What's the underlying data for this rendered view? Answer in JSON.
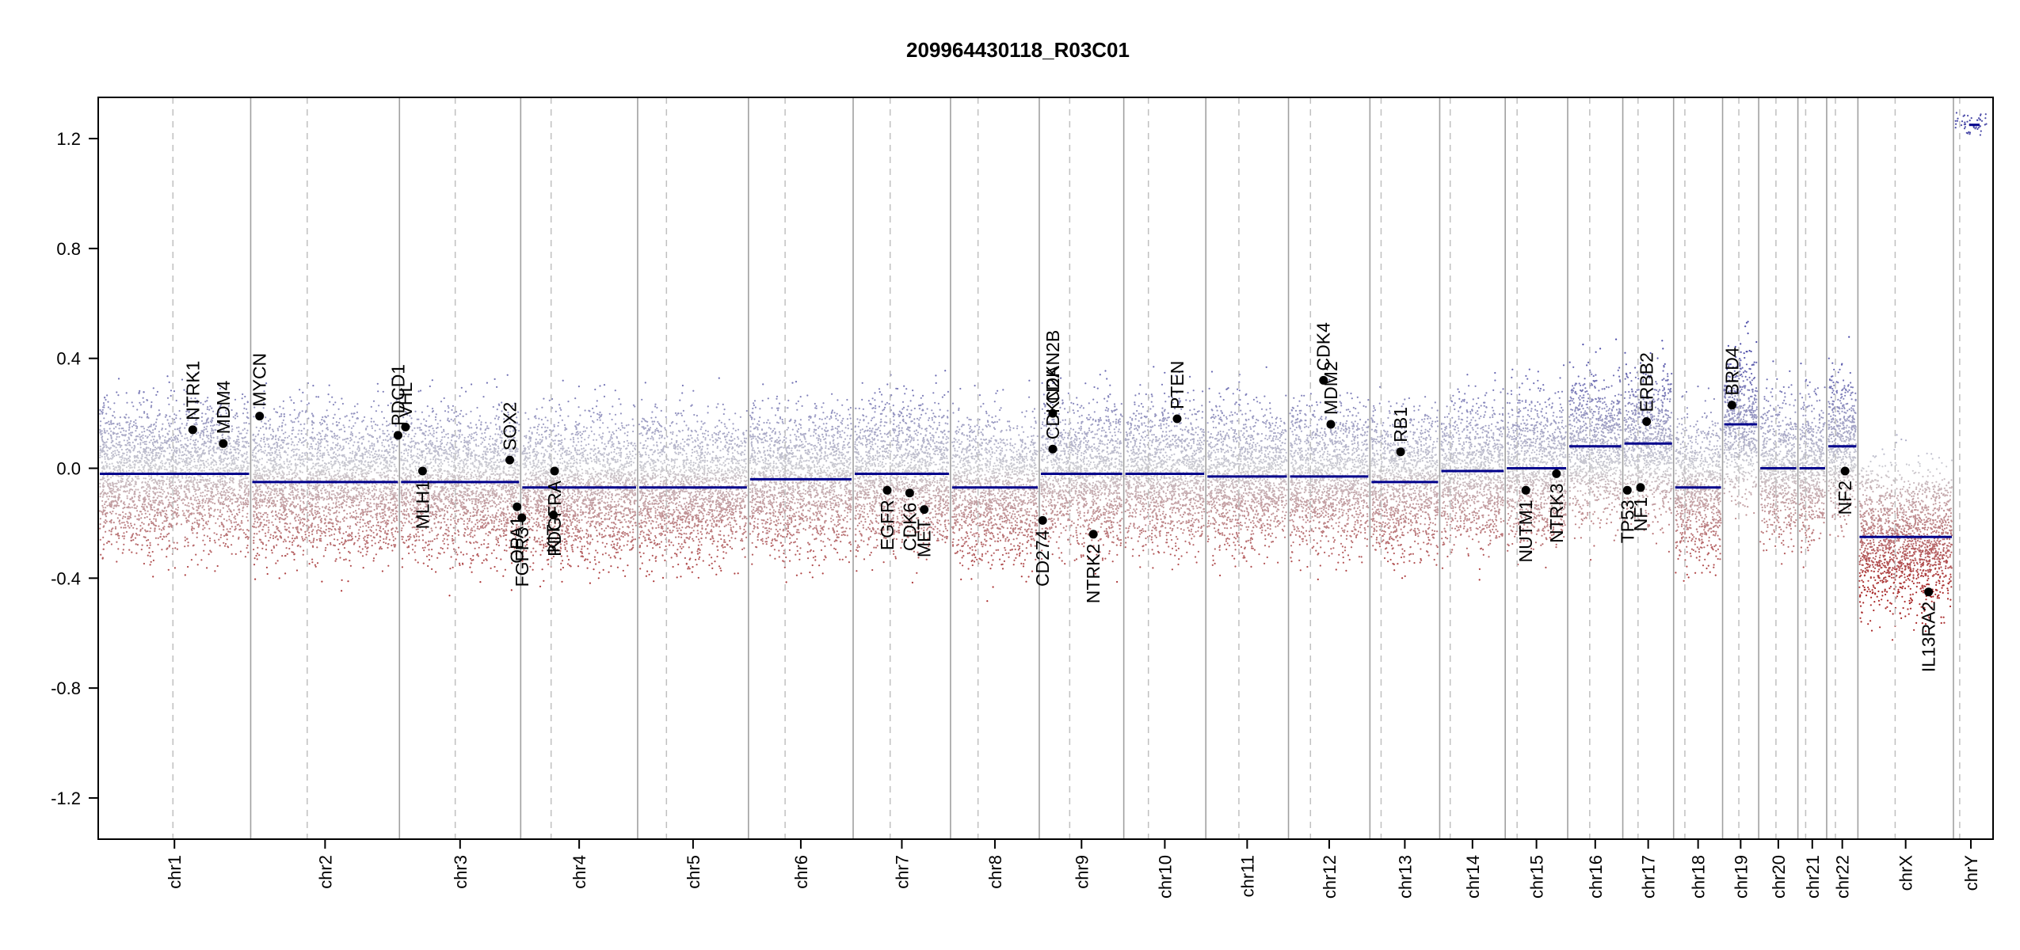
{
  "chart_data": {
    "type": "scatter",
    "title": "209964430118_R03C01",
    "xlabel": "",
    "ylabel": "",
    "ylim": [
      -1.35,
      1.35
    ],
    "yticks": [
      -1.2,
      -0.8,
      -0.4,
      0.0,
      0.4,
      0.8,
      1.2
    ],
    "ytick_labels": [
      "-1.2",
      "-0.8",
      "-0.4",
      "0.0",
      "0.4",
      "0.8",
      "1.2"
    ],
    "grid": false,
    "colors": {
      "gain": "#4a4aa8",
      "loss": "#a82828",
      "neutral": "#9a9a9a",
      "segment": "#00008b",
      "gene_point": "#000000",
      "chr_boundary": "#a0a0a0",
      "centromere": "#c0c0c0"
    },
    "chromosomes": [
      {
        "name": "chr1",
        "size": 249,
        "centromere": 0.49,
        "segment_mean": -0.02
      },
      {
        "name": "chr2",
        "size": 243,
        "centromere": 0.38,
        "segment_mean": -0.05
      },
      {
        "name": "chr3",
        "size": 198,
        "centromere": 0.46,
        "segment_mean": -0.05
      },
      {
        "name": "chr4",
        "size": 191,
        "centromere": 0.26,
        "segment_mean": -0.07
      },
      {
        "name": "chr5",
        "size": 181,
        "centromere": 0.26,
        "segment_mean": -0.07
      },
      {
        "name": "chr6",
        "size": 171,
        "centromere": 0.35,
        "segment_mean": -0.04
      },
      {
        "name": "chr7",
        "size": 159,
        "centromere": 0.38,
        "segment_mean": -0.02
      },
      {
        "name": "chr8",
        "size": 145,
        "centromere": 0.31,
        "segment_mean": -0.07
      },
      {
        "name": "chr9",
        "size": 138,
        "centromere": 0.36,
        "segment_mean": -0.02
      },
      {
        "name": "chr10",
        "size": 134,
        "centromere": 0.3,
        "segment_mean": -0.02
      },
      {
        "name": "chr11",
        "size": 135,
        "centromere": 0.4,
        "segment_mean": -0.03
      },
      {
        "name": "chr12",
        "size": 133,
        "centromere": 0.27,
        "segment_mean": -0.03
      },
      {
        "name": "chr13",
        "size": 114,
        "centromere": 0.16,
        "segment_mean": -0.05
      },
      {
        "name": "chr14",
        "size": 107,
        "centromere": 0.16,
        "segment_mean": -0.01
      },
      {
        "name": "chr15",
        "size": 102,
        "centromere": 0.19,
        "segment_mean": 0.0
      },
      {
        "name": "chr16",
        "size": 90,
        "centromere": 0.4,
        "segment_mean": 0.08
      },
      {
        "name": "chr17",
        "size": 83,
        "centromere": 0.3,
        "segment_mean": 0.09
      },
      {
        "name": "chr18",
        "size": 80,
        "centromere": 0.23,
        "segment_mean": -0.07
      },
      {
        "name": "chr19",
        "size": 59,
        "centromere": 0.45,
        "segment_mean": 0.16
      },
      {
        "name": "chr20",
        "size": 64,
        "centromere": 0.44,
        "segment_mean": 0.0
      },
      {
        "name": "chr21",
        "size": 47,
        "centromere": 0.27,
        "segment_mean": 0.0
      },
      {
        "name": "chr22",
        "size": 51,
        "centromere": 0.28,
        "segment_mean": 0.08
      },
      {
        "name": "chrX",
        "size": 156,
        "centromere": 0.39,
        "segment_mean": -0.25
      },
      {
        "name": "chrY",
        "size": 57,
        "centromere": 0.18,
        "segment_mean": 1.25
      }
    ],
    "genes": [
      {
        "name": "NTRK1",
        "chr": "chr1",
        "pos": 0.62,
        "value": 0.14,
        "label_side": "above"
      },
      {
        "name": "MDM4",
        "chr": "chr1",
        "pos": 0.82,
        "value": 0.09,
        "label_side": "above"
      },
      {
        "name": "MYCN",
        "chr": "chr2",
        "pos": 0.06,
        "value": 0.19,
        "label_side": "above"
      },
      {
        "name": "PDCD1",
        "chr": "chr2",
        "pos": 0.99,
        "value": 0.12,
        "label_side": "above"
      },
      {
        "name": "VHL",
        "chr": "chr3",
        "pos": 0.05,
        "value": 0.15,
        "label_side": "above"
      },
      {
        "name": "MLH1",
        "chr": "chr3",
        "pos": 0.19,
        "value": -0.01,
        "label_side": "below"
      },
      {
        "name": "SOX2",
        "chr": "chr3",
        "pos": 0.91,
        "value": 0.03,
        "label_side": "above"
      },
      {
        "name": "OPA1",
        "chr": "chr3",
        "pos": 0.97,
        "value": -0.14,
        "label_side": "below"
      },
      {
        "name": "FGFR3",
        "chr": "chr4",
        "pos": 0.01,
        "value": -0.18,
        "label_side": "below"
      },
      {
        "name": "KIT",
        "chr": "chr4",
        "pos": 0.28,
        "value": -0.17,
        "label_side": "below"
      },
      {
        "name": "PDGFRA",
        "chr": "chr4",
        "pos": 0.29,
        "value": -0.01,
        "label_side": "below"
      },
      {
        "name": "EGFR",
        "chr": "chr7",
        "pos": 0.35,
        "value": -0.08,
        "label_side": "below"
      },
      {
        "name": "CDK6",
        "chr": "chr7",
        "pos": 0.58,
        "value": -0.09,
        "label_side": "below"
      },
      {
        "name": "MET",
        "chr": "chr7",
        "pos": 0.73,
        "value": -0.15,
        "label_side": "below"
      },
      {
        "name": "CD274",
        "chr": "chr9",
        "pos": 0.04,
        "value": -0.19,
        "label_side": "below"
      },
      {
        "name": "CDKN2A",
        "chr": "chr9",
        "pos": 0.16,
        "value": 0.07,
        "label_side": "above"
      },
      {
        "name": "CDKN2B",
        "chr": "chr9",
        "pos": 0.16,
        "value": 0.2,
        "label_side": "above"
      },
      {
        "name": "NTRK2",
        "chr": "chr9",
        "pos": 0.64,
        "value": -0.24,
        "label_side": "below"
      },
      {
        "name": "PTEN",
        "chr": "chr10",
        "pos": 0.65,
        "value": 0.18,
        "label_side": "above"
      },
      {
        "name": "CDK4",
        "chr": "chr12",
        "pos": 0.43,
        "value": 0.32,
        "label_side": "above"
      },
      {
        "name": "MDM2",
        "chr": "chr12",
        "pos": 0.52,
        "value": 0.16,
        "label_side": "above"
      },
      {
        "name": "RB1",
        "chr": "chr13",
        "pos": 0.44,
        "value": 0.06,
        "label_side": "above"
      },
      {
        "name": "NUTM1",
        "chr": "chr15",
        "pos": 0.33,
        "value": -0.08,
        "label_side": "below"
      },
      {
        "name": "NTRK3",
        "chr": "chr15",
        "pos": 0.82,
        "value": -0.02,
        "label_side": "below"
      },
      {
        "name": "TP53",
        "chr": "chr17",
        "pos": 0.09,
        "value": -0.08,
        "label_side": "below"
      },
      {
        "name": "NF1",
        "chr": "chr17",
        "pos": 0.35,
        "value": -0.07,
        "label_side": "below"
      },
      {
        "name": "ERBB2",
        "chr": "chr17",
        "pos": 0.47,
        "value": 0.17,
        "label_side": "above"
      },
      {
        "name": "BRD4",
        "chr": "chr19",
        "pos": 0.26,
        "value": 0.23,
        "label_side": "above"
      },
      {
        "name": "NF2",
        "chr": "chr22",
        "pos": 0.59,
        "value": -0.01,
        "label_side": "below"
      },
      {
        "name": "IL13RA2",
        "chr": "chrX",
        "pos": 0.74,
        "value": -0.45,
        "label_side": "below"
      }
    ]
  }
}
